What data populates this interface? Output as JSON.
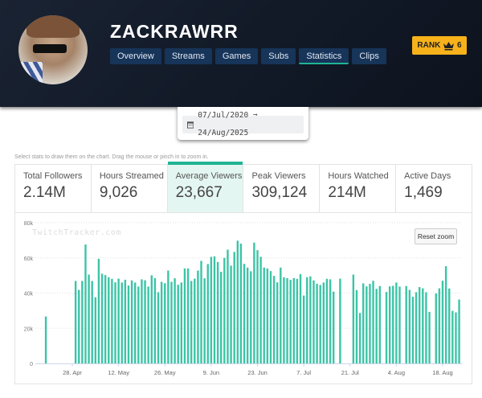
{
  "header": {
    "title": "ZACKRAWRR",
    "nav": [
      "Overview",
      "Streams",
      "Games",
      "Subs",
      "Statistics",
      "Clips"
    ],
    "active_nav": "Statistics",
    "rank_label": "RANK",
    "rank_icon": "crown-icon",
    "rank_value": "6"
  },
  "date_range": {
    "icon": "calendar-icon",
    "text": "07/Jul/2020 ➞ 24/Aug/2025"
  },
  "hint": "Select stats to draw them on the chart. Drag the mouse or pinch in to zoom in.",
  "stats": [
    {
      "label": "Total Followers",
      "value": "2.14M"
    },
    {
      "label": "Hours Streamed",
      "value": "9,026"
    },
    {
      "label": "Average Viewers",
      "value": "23,667"
    },
    {
      "label": "Peak Viewers",
      "value": "309,124"
    },
    {
      "label": "Hours Watched",
      "value": "214M"
    },
    {
      "label": "Active Days",
      "value": "1,469"
    }
  ],
  "chart": {
    "reset_zoom": "Reset zoom",
    "watermark": "TwitchTracker.com"
  },
  "colors": {
    "accent": "#21b394",
    "bar": "#3cc4a6",
    "rank": "#f7b21b",
    "header": "#131b29"
  },
  "chart_data": {
    "type": "bar",
    "series_stat": "Average Viewers",
    "ylim": [
      0,
      80000
    ],
    "yticks": [
      "0",
      "20k",
      "40k",
      "60k",
      "80k"
    ],
    "xticks": [
      "28. Apr",
      "12. May",
      "26. May",
      "9. Jun",
      "23. Jun",
      "7. Jul",
      "21. Jul",
      "4. Aug",
      "18. Aug"
    ],
    "grid": true,
    "x": [
      "20 Apr",
      "29 Apr",
      "30 Apr",
      "1 May",
      "2 May",
      "3 May",
      "4 May",
      "5 May",
      "6 May",
      "7 May",
      "8 May",
      "9 May",
      "10 May",
      "11 May",
      "12 May",
      "13 May",
      "14 May",
      "15 May",
      "16 May",
      "17 May",
      "18 May",
      "19 May",
      "20 May",
      "21 May",
      "22 May",
      "23 May",
      "24 May",
      "25 May",
      "26 May",
      "27 May",
      "28 May",
      "29 May",
      "30 May",
      "31 May",
      "1 Jun",
      "2 Jun",
      "3 Jun",
      "4 Jun",
      "5 Jun",
      "6 Jun",
      "7 Jun",
      "8 Jun",
      "9 Jun",
      "10 Jun",
      "11 Jun",
      "12 Jun",
      "13 Jun",
      "14 Jun",
      "15 Jun",
      "16 Jun",
      "17 Jun",
      "18 Jun",
      "19 Jun",
      "20 Jun",
      "21 Jun",
      "22 Jun",
      "23 Jun",
      "24 Jun",
      "25 Jun",
      "26 Jun",
      "27 Jun",
      "28 Jun",
      "29 Jun",
      "30 Jun",
      "1 Jul",
      "2 Jul",
      "3 Jul",
      "4 Jul",
      "5 Jul",
      "6 Jul",
      "7 Jul",
      "8 Jul",
      "9 Jul",
      "10 Jul",
      "11 Jul",
      "12 Jul",
      "13 Jul",
      "14 Jul",
      "15 Jul",
      "16 Jul",
      "18 Jul",
      "22 Jul",
      "23 Jul",
      "24 Jul",
      "25 Jul",
      "26 Jul",
      "27 Jul",
      "28 Jul",
      "29 Jul",
      "30 Jul",
      "1 Aug",
      "2 Aug",
      "3 Aug",
      "4 Aug",
      "5 Aug",
      "7 Aug",
      "8 Aug",
      "9 Aug",
      "10 Aug",
      "11 Aug",
      "12 Aug",
      "13 Aug",
      "14 Aug",
      "16 Aug",
      "17 Aug",
      "18 Aug",
      "19 Aug",
      "20 Aug",
      "21 Aug",
      "22 Aug",
      "23 Aug"
    ],
    "values": [
      26700,
      46900,
      41800,
      46900,
      67600,
      50500,
      46900,
      37600,
      59500,
      51000,
      50200,
      49000,
      48100,
      46100,
      48200,
      46000,
      47600,
      44300,
      47200,
      46000,
      43700,
      47800,
      47300,
      43700,
      50100,
      48500,
      40500,
      46400,
      45600,
      52800,
      46400,
      48400,
      44700,
      46000,
      54000,
      54000,
      46900,
      48200,
      52800,
      58300,
      48400,
      56500,
      60600,
      60900,
      57700,
      52100,
      60000,
      64700,
      55600,
      63400,
      69800,
      68100,
      56600,
      54500,
      52400,
      68700,
      64400,
      60600,
      54500,
      54000,
      52500,
      49800,
      46100,
      54500,
      49000,
      48500,
      47500,
      48500,
      48100,
      50800,
      38600,
      49000,
      49500,
      47200,
      45300,
      44600,
      46000,
      48100,
      47800,
      40800,
      48200,
      50500,
      41700,
      28700,
      45500,
      43800,
      45200,
      47000,
      42400,
      44000,
      40600,
      43800,
      44100,
      46000,
      43700,
      44000,
      41800,
      37900,
      40500,
      43400,
      42700,
      40500,
      29300,
      39800,
      42700,
      47000,
      55300,
      42600,
      29900,
      29000,
      36300
    ]
  }
}
